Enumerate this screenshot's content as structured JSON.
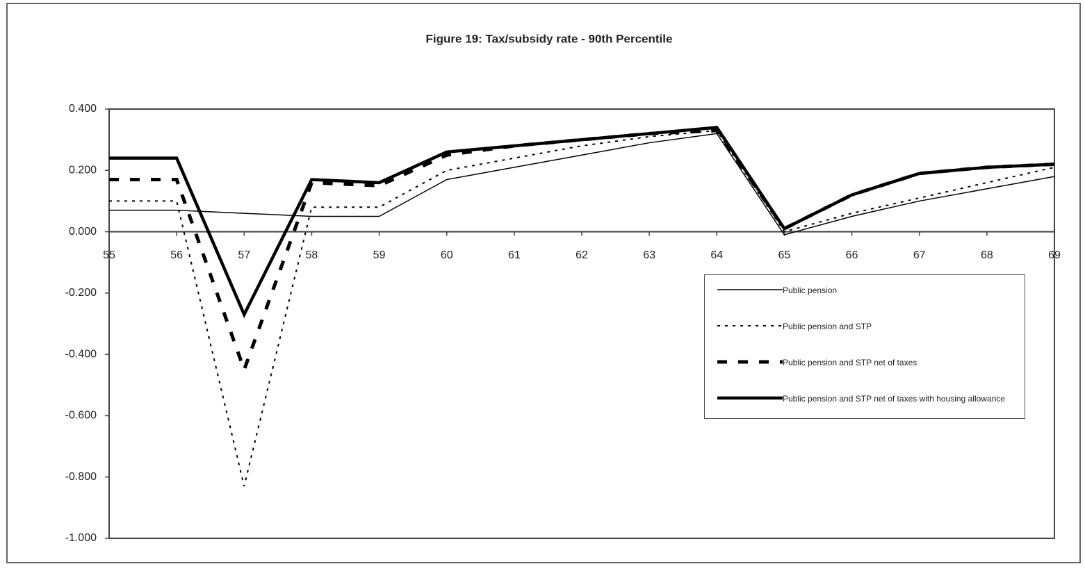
{
  "chart_data": {
    "type": "line",
    "title": "Figure 19: Tax/subsidy rate - 90th Percentile",
    "x": [
      55,
      56,
      57,
      58,
      59,
      60,
      61,
      62,
      63,
      64,
      65,
      66,
      67,
      68,
      69
    ],
    "xlim": [
      55,
      69
    ],
    "xticks": [
      55,
      56,
      57,
      58,
      59,
      60,
      61,
      62,
      63,
      64,
      65,
      66,
      67,
      68,
      69
    ],
    "ylim": [
      -1.0,
      0.4
    ],
    "yticks": [
      {
        "value": 0.4,
        "label": "0.400"
      },
      {
        "value": 0.2,
        "label": "0.200"
      },
      {
        "value": 0.0,
        "label": "0.000"
      },
      {
        "value": -0.2,
        "label": "-0.200"
      },
      {
        "value": -0.4,
        "label": "-0.400"
      },
      {
        "value": -0.6,
        "label": "-0.600"
      },
      {
        "value": -0.8,
        "label": "-0.800"
      },
      {
        "value": -1.0,
        "label": "-1.000"
      }
    ],
    "grid": false,
    "legend": "right",
    "series": [
      {
        "name": "Public pension",
        "color": "#000000",
        "style": "solid",
        "width": 1.5,
        "values": [
          0.07,
          0.07,
          0.06,
          0.05,
          0.05,
          0.17,
          0.21,
          0.25,
          0.29,
          0.32,
          -0.01,
          0.05,
          0.1,
          0.14,
          0.18
        ]
      },
      {
        "name": "Public pension and STP",
        "color": "#000000",
        "style": "dotted",
        "width": 2,
        "values": [
          0.1,
          0.1,
          -0.83,
          0.08,
          0.08,
          0.2,
          0.24,
          0.28,
          0.31,
          0.33,
          0.0,
          0.06,
          0.11,
          0.16,
          0.21
        ]
      },
      {
        "name": "Public pension and STP net of taxes",
        "color": "#000000",
        "style": "dashed",
        "width": 5,
        "values": [
          0.17,
          0.17,
          -0.45,
          0.16,
          0.15,
          0.25,
          0.28,
          0.3,
          0.32,
          0.33,
          0.01,
          0.12,
          0.19,
          0.21,
          0.22
        ]
      },
      {
        "name": "Public pension and STP net of taxes with housing allowance",
        "color": "#000000",
        "style": "solid",
        "width": 4.5,
        "values": [
          0.24,
          0.24,
          -0.27,
          0.17,
          0.16,
          0.26,
          0.28,
          0.3,
          0.32,
          0.34,
          0.01,
          0.12,
          0.19,
          0.21,
          0.22
        ]
      }
    ]
  }
}
